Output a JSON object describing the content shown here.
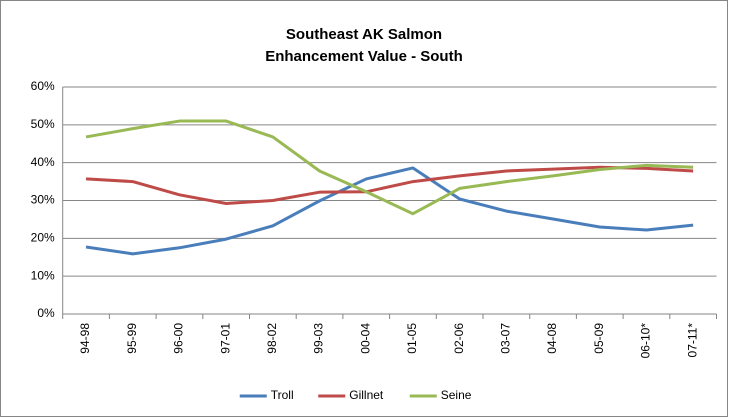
{
  "chart_data": {
    "type": "line",
    "title": [
      "Southeast AK Salmon",
      "Enhancement Value - South"
    ],
    "categories": [
      "94-98",
      "95-99",
      "96-00",
      "97-01",
      "98-02",
      "99-03",
      "00-04",
      "01-05",
      "02-06",
      "03-07",
      "04-08",
      "05-09",
      "06-10*",
      "07-11*"
    ],
    "series": [
      {
        "name": "Troll",
        "color": "#4a7ebb",
        "values": [
          17.7,
          15.9,
          17.5,
          19.8,
          23.3,
          29.9,
          35.7,
          38.6,
          30.4,
          27.2,
          25.1,
          23,
          22.2,
          23.5
        ]
      },
      {
        "name": "Gillnet",
        "color": "#be4b48",
        "values": [
          35.7,
          35,
          31.5,
          29.2,
          30,
          32.2,
          32.3,
          35,
          36.5,
          37.8,
          38.3,
          38.8,
          38.5,
          37.8
        ]
      },
      {
        "name": "Seine",
        "color": "#98b954",
        "values": [
          46.8,
          49,
          51,
          51,
          46.8,
          37.8,
          32.3,
          26.5,
          33.2,
          35,
          36.5,
          38.2,
          39.3,
          38.8
        ]
      }
    ],
    "ylim": [
      0,
      60
    ],
    "yticks": [
      {
        "value": 0,
        "label": "0%"
      },
      {
        "value": 10,
        "label": "10%"
      },
      {
        "value": 20,
        "label": "20%"
      },
      {
        "value": 30,
        "label": "30%"
      },
      {
        "value": 40,
        "label": "40%"
      },
      {
        "value": 50,
        "label": "50%"
      },
      {
        "value": 60,
        "label": "60%"
      }
    ],
    "grid": true,
    "legend": "bottom"
  }
}
